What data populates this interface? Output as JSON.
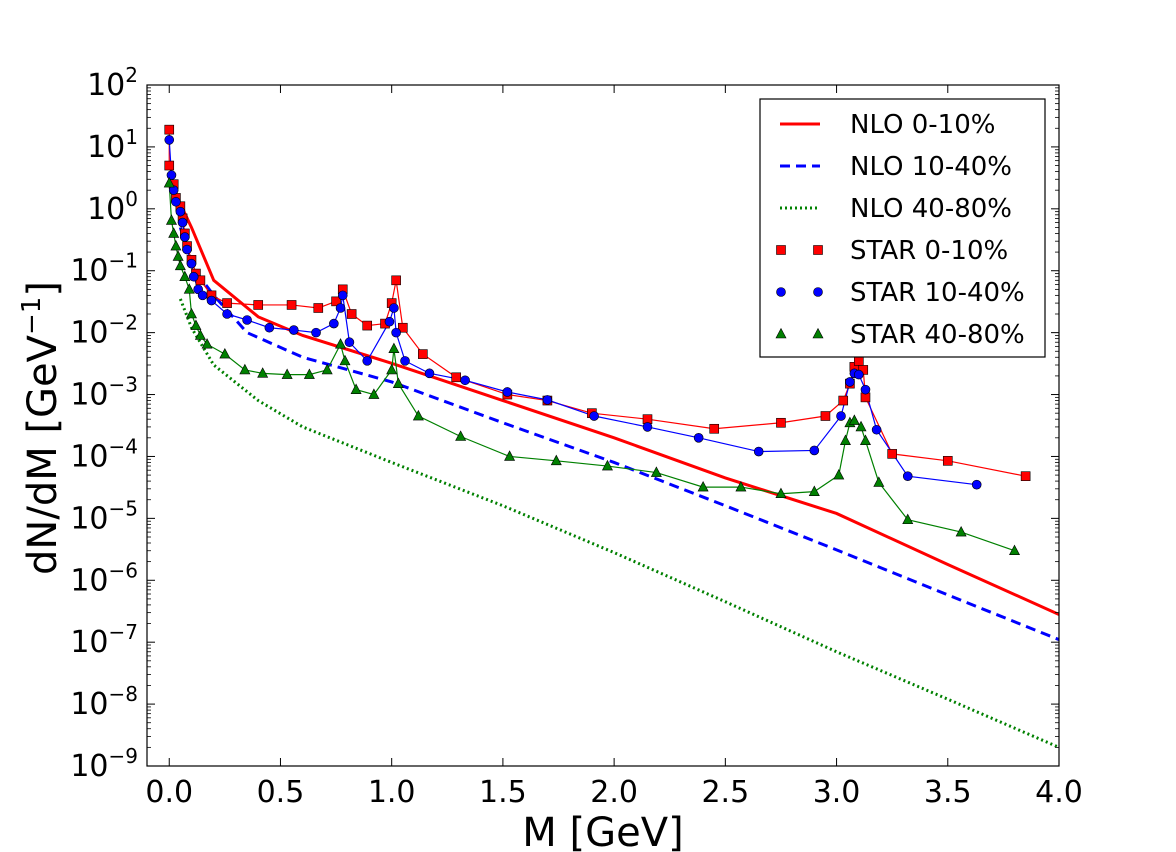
{
  "chart_data": {
    "type": "line",
    "xlabel": "M [GeV]",
    "ylabel": "dN/dM [GeV",
    "ylabel_sup": "−1",
    "ylabel_end": "]",
    "xlim": [
      -0.1,
      4.0
    ],
    "ylim_log10": [
      -9,
      2
    ],
    "y_scale": "log",
    "xticks": [
      0.0,
      0.5,
      1.0,
      1.5,
      2.0,
      2.5,
      3.0,
      3.5,
      4.0
    ],
    "xtick_labels": [
      "0.0",
      "0.5",
      "1.0",
      "1.5",
      "2.0",
      "2.5",
      "3.0",
      "3.5",
      "4.0"
    ],
    "yticks_exp": [
      2,
      1,
      0,
      -1,
      -2,
      -3,
      -4,
      -5,
      -6,
      -7,
      -8,
      -9
    ],
    "ytick_base": "10",
    "ytick_exp_labels": [
      "2",
      "1",
      "0",
      "−1",
      "−2",
      "−3",
      "−4",
      "−5",
      "−6",
      "−7",
      "−8",
      "−9"
    ],
    "legend_position": "top-right",
    "series": [
      {
        "name": "NLO 0-10%",
        "kind": "line",
        "style": "solid",
        "color": "#ff0000",
        "points": [
          [
            0.05,
            1.2
          ],
          [
            0.1,
            0.5
          ],
          [
            0.2,
            0.07
          ],
          [
            0.4,
            0.018
          ],
          [
            0.6,
            0.009
          ],
          [
            1.0,
            0.0032
          ],
          [
            1.5,
            0.0008
          ],
          [
            2.0,
            0.0002
          ],
          [
            2.5,
            4.5e-05
          ],
          [
            3.0,
            1.2e-05
          ],
          [
            3.5,
            1.8e-06
          ],
          [
            4.0,
            2.8e-07
          ]
        ]
      },
      {
        "name": "NLO 10-40%",
        "kind": "line",
        "style": "dashed",
        "color": "#0000ff",
        "points": [
          [
            0.05,
            0.5
          ],
          [
            0.1,
            0.12
          ],
          [
            0.2,
            0.04
          ],
          [
            0.35,
            0.01
          ],
          [
            0.6,
            0.004
          ],
          [
            1.0,
            0.0016
          ],
          [
            1.5,
            0.00035
          ],
          [
            2.0,
            8e-05
          ],
          [
            2.5,
            1.6e-05
          ],
          [
            3.0,
            3.1e-06
          ],
          [
            3.5,
            5.8e-07
          ],
          [
            4.0,
            1.1e-07
          ]
        ]
      },
      {
        "name": "NLO 40-80%",
        "kind": "line",
        "style": "dotted",
        "color": "#008000",
        "points": [
          [
            0.05,
            0.035
          ],
          [
            0.1,
            0.012
          ],
          [
            0.2,
            0.003
          ],
          [
            0.4,
            0.0008
          ],
          [
            0.6,
            0.0003
          ],
          [
            1.0,
            8e-05
          ],
          [
            1.5,
            1.6e-05
          ],
          [
            2.0,
            2.8e-06
          ],
          [
            2.5,
            4.5e-07
          ],
          [
            3.0,
            7e-08
          ],
          [
            3.5,
            1.2e-08
          ],
          [
            4.0,
            2e-09
          ]
        ]
      },
      {
        "name": "STAR 0-10%",
        "kind": "markers",
        "marker": "square",
        "color": "#ff0000",
        "points": [
          [
            0.0,
            19
          ],
          [
            0.0,
            5
          ],
          [
            0.02,
            2.5
          ],
          [
            0.03,
            1.5
          ],
          [
            0.05,
            1.1
          ],
          [
            0.06,
            0.7
          ],
          [
            0.07,
            0.4
          ],
          [
            0.08,
            0.25
          ],
          [
            0.1,
            0.15
          ],
          [
            0.12,
            0.09
          ],
          [
            0.14,
            0.07
          ],
          [
            0.19,
            0.04
          ],
          [
            0.26,
            0.03
          ],
          [
            0.4,
            0.028
          ],
          [
            0.55,
            0.028
          ],
          [
            0.67,
            0.025
          ],
          [
            0.75,
            0.032
          ],
          [
            0.78,
            0.05
          ],
          [
            0.82,
            0.02
          ],
          [
            0.89,
            0.013
          ],
          [
            0.97,
            0.014
          ],
          [
            1.0,
            0.03
          ],
          [
            1.02,
            0.07
          ],
          [
            1.05,
            0.012
          ],
          [
            1.14,
            0.0045
          ],
          [
            1.29,
            0.0019
          ],
          [
            1.52,
            0.001
          ],
          [
            1.7,
            0.0008
          ],
          [
            1.9,
            0.0005
          ],
          [
            2.15,
            0.0004
          ],
          [
            2.45,
            0.00028
          ],
          [
            2.75,
            0.00035
          ],
          [
            2.95,
            0.00045
          ],
          [
            3.03,
            0.0008
          ],
          [
            3.06,
            0.0015
          ],
          [
            3.08,
            0.0028
          ],
          [
            3.1,
            0.0035
          ],
          [
            3.12,
            0.0025
          ],
          [
            3.13,
            0.0009
          ],
          [
            3.25,
            0.00011
          ],
          [
            3.5,
            8.5e-05
          ],
          [
            3.85,
            4.8e-05
          ]
        ]
      },
      {
        "name": "STAR 10-40%",
        "kind": "markers",
        "marker": "circle",
        "color": "#0000ff",
        "points": [
          [
            0.0,
            13
          ],
          [
            0.01,
            3.5
          ],
          [
            0.02,
            2.0
          ],
          [
            0.03,
            1.3
          ],
          [
            0.05,
            0.9
          ],
          [
            0.06,
            0.6
          ],
          [
            0.07,
            0.35
          ],
          [
            0.08,
            0.22
          ],
          [
            0.1,
            0.13
          ],
          [
            0.11,
            0.08
          ],
          [
            0.13,
            0.05
          ],
          [
            0.15,
            0.04
          ],
          [
            0.19,
            0.033
          ],
          [
            0.26,
            0.02
          ],
          [
            0.35,
            0.016
          ],
          [
            0.45,
            0.012
          ],
          [
            0.56,
            0.011
          ],
          [
            0.66,
            0.01
          ],
          [
            0.74,
            0.014
          ],
          [
            0.77,
            0.025
          ],
          [
            0.78,
            0.04
          ],
          [
            0.81,
            0.007
          ],
          [
            0.89,
            0.0035
          ],
          [
            0.99,
            0.015
          ],
          [
            1.01,
            0.025
          ],
          [
            1.02,
            0.01
          ],
          [
            1.06,
            0.0035
          ],
          [
            1.17,
            0.0022
          ],
          [
            1.33,
            0.0017
          ],
          [
            1.52,
            0.0011
          ],
          [
            1.7,
            0.00082
          ],
          [
            1.91,
            0.00045
          ],
          [
            2.15,
            0.0003
          ],
          [
            2.38,
            0.0002
          ],
          [
            2.65,
            0.00012
          ],
          [
            2.9,
            0.000125
          ],
          [
            3.02,
            0.00045
          ],
          [
            3.06,
            0.0016
          ],
          [
            3.08,
            0.0022
          ],
          [
            3.1,
            0.0021
          ],
          [
            3.13,
            0.0012
          ],
          [
            3.18,
            0.00027
          ],
          [
            3.32,
            4.8e-05
          ],
          [
            3.63,
            3.5e-05
          ]
        ]
      },
      {
        "name": "STAR 40-80%",
        "kind": "markers",
        "marker": "triangle",
        "color": "#008000",
        "points": [
          [
            0.0,
            2.6
          ],
          [
            0.01,
            0.65
          ],
          [
            0.02,
            0.4
          ],
          [
            0.03,
            0.25
          ],
          [
            0.04,
            0.17
          ],
          [
            0.05,
            0.12
          ],
          [
            0.07,
            0.08
          ],
          [
            0.09,
            0.05
          ],
          [
            0.1,
            0.02
          ],
          [
            0.12,
            0.013
          ],
          [
            0.14,
            0.009
          ],
          [
            0.17,
            0.0065
          ],
          [
            0.25,
            0.0045
          ],
          [
            0.34,
            0.0025
          ],
          [
            0.42,
            0.0022
          ],
          [
            0.53,
            0.0021
          ],
          [
            0.63,
            0.0021
          ],
          [
            0.71,
            0.0025
          ],
          [
            0.77,
            0.0065
          ],
          [
            0.79,
            0.0035
          ],
          [
            0.84,
            0.0012
          ],
          [
            0.92,
            0.001
          ],
          [
            1.0,
            0.0025
          ],
          [
            1.01,
            0.0055
          ],
          [
            1.03,
            0.0015
          ],
          [
            1.12,
            0.00045
          ],
          [
            1.31,
            0.00021
          ],
          [
            1.53,
            0.0001
          ],
          [
            1.74,
            8.5e-05
          ],
          [
            1.97,
            7e-05
          ],
          [
            2.19,
            5.5e-05
          ],
          [
            2.4,
            3.2e-05
          ],
          [
            2.57,
            3.2e-05
          ],
          [
            2.75,
            2.5e-05
          ],
          [
            2.9,
            2.7e-05
          ],
          [
            3.01,
            5e-05
          ],
          [
            3.04,
            0.00018
          ],
          [
            3.06,
            0.00035
          ],
          [
            3.08,
            0.00038
          ],
          [
            3.11,
            0.0003
          ],
          [
            3.13,
            0.00018
          ],
          [
            3.19,
            3.8e-05
          ],
          [
            3.32,
            9.5e-06
          ],
          [
            3.56,
            6e-06
          ],
          [
            3.8,
            3e-06
          ]
        ]
      }
    ]
  }
}
